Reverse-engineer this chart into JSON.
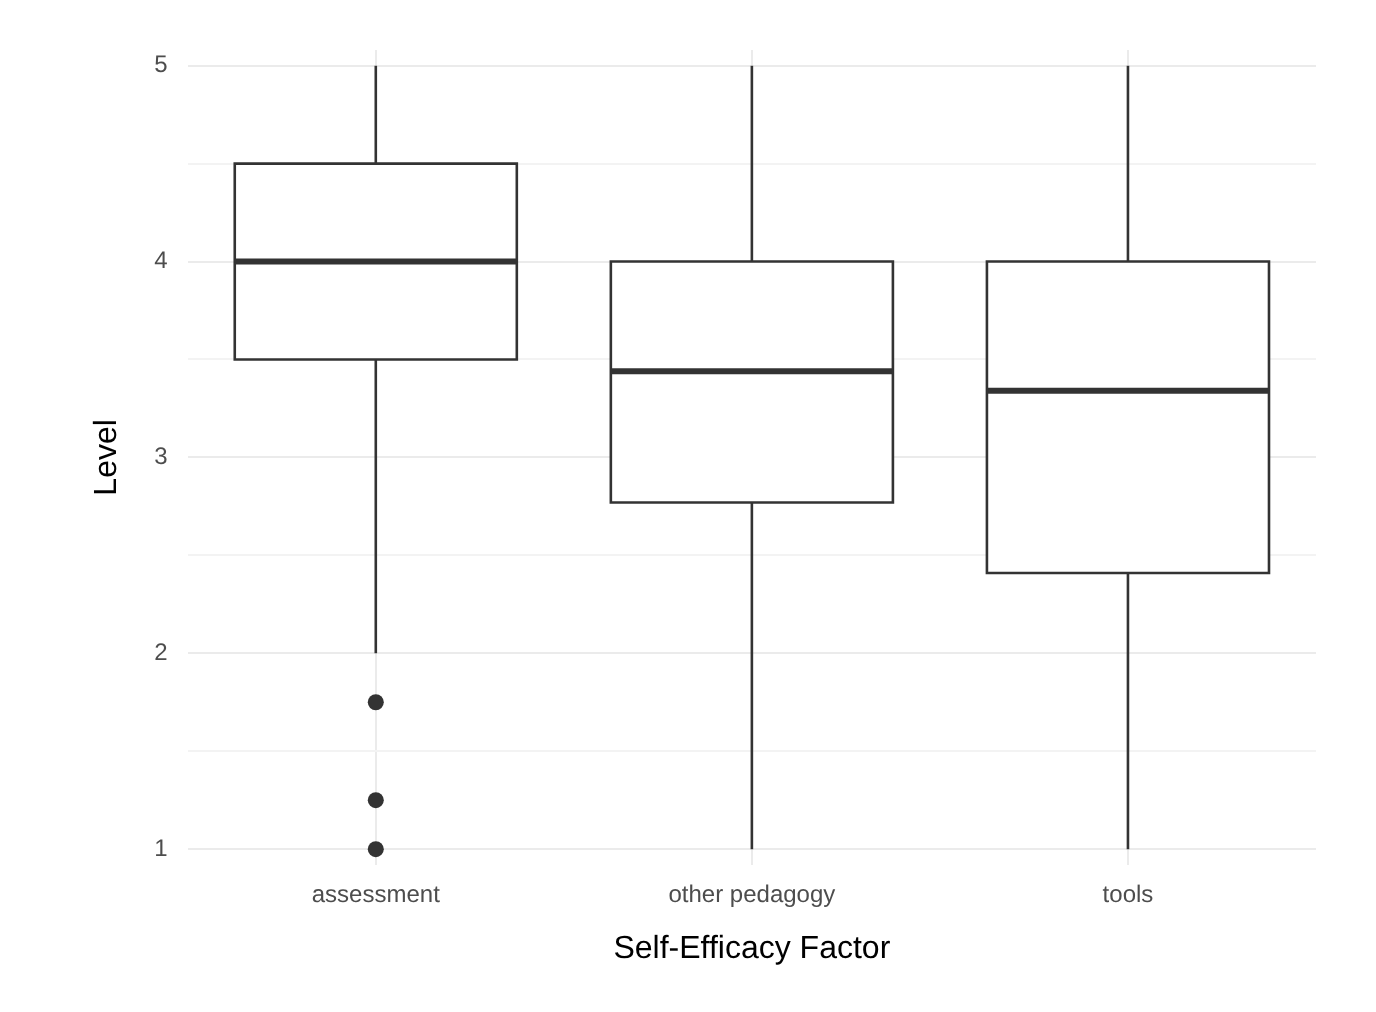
{
  "chart_data": {
    "type": "box",
    "xlabel": "Self-Efficacy Factor",
    "ylabel": "Level",
    "categories": [
      "assessment",
      "other pedagogy",
      "tools"
    ],
    "boxes": [
      {
        "low": 2,
        "q1": 3.5,
        "median": 4,
        "q3": 4.5,
        "high": 5,
        "outliers": [
          1.75,
          1.25,
          1
        ]
      },
      {
        "low": 1,
        "q1": 2.77,
        "median": 3.44,
        "q3": 4,
        "high": 5
      },
      {
        "low": 1,
        "q1": 2.41,
        "median": 3.34,
        "q3": 4,
        "high": 5
      }
    ],
    "ylim": [
      0.92,
      5.08
    ],
    "yticks": [
      1,
      {
        "value": 1.5,
        "label": null
      },
      2,
      {
        "value": 2.5,
        "label": null
      },
      3,
      {
        "value": 3.5,
        "label": null
      },
      4,
      {
        "value": 4.5,
        "label": null
      },
      5
    ],
    "grid": true,
    "legend": false
  }
}
